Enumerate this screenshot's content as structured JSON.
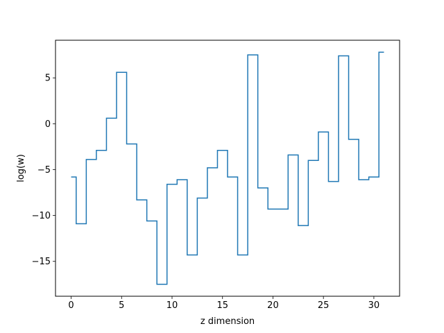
{
  "chart_data": {
    "type": "line",
    "drawstyle": "steps-mid",
    "title": "",
    "xlabel": "z dimension",
    "ylabel": "log(w)",
    "xlim": [
      -1.55,
      32.55
    ],
    "ylim": [
      -18.8,
      9.1
    ],
    "xticks": [
      0,
      5,
      10,
      15,
      20,
      25,
      30
    ],
    "xtick_labels": [
      "0",
      "5",
      "10",
      "15",
      "20",
      "25",
      "30"
    ],
    "yticks": [
      5,
      0,
      -5,
      -10,
      -15
    ],
    "ytick_labels": [
      "5",
      "0",
      "−5",
      "−10",
      "−15"
    ],
    "grid": false,
    "line_color": "#1f77b4",
    "series": [
      {
        "x": [
          0,
          1,
          2,
          3,
          4,
          5,
          6,
          7,
          8,
          9,
          10,
          11,
          12,
          13,
          14,
          15,
          16,
          17,
          18,
          19,
          20,
          21,
          22,
          23,
          24,
          25,
          26,
          27,
          28,
          29,
          30,
          31
        ],
        "y": [
          -5.8,
          -10.9,
          -3.9,
          -2.9,
          0.6,
          5.6,
          -2.2,
          -8.3,
          -10.6,
          -17.5,
          -6.6,
          -6.1,
          -14.3,
          -8.1,
          -4.8,
          -2.9,
          -5.8,
          -14.3,
          7.5,
          -7.0,
          -9.3,
          -9.3,
          -3.4,
          -11.1,
          -4.0,
          -0.9,
          -6.3,
          7.4,
          -1.7,
          -6.1,
          -5.8,
          7.8
        ]
      }
    ]
  }
}
